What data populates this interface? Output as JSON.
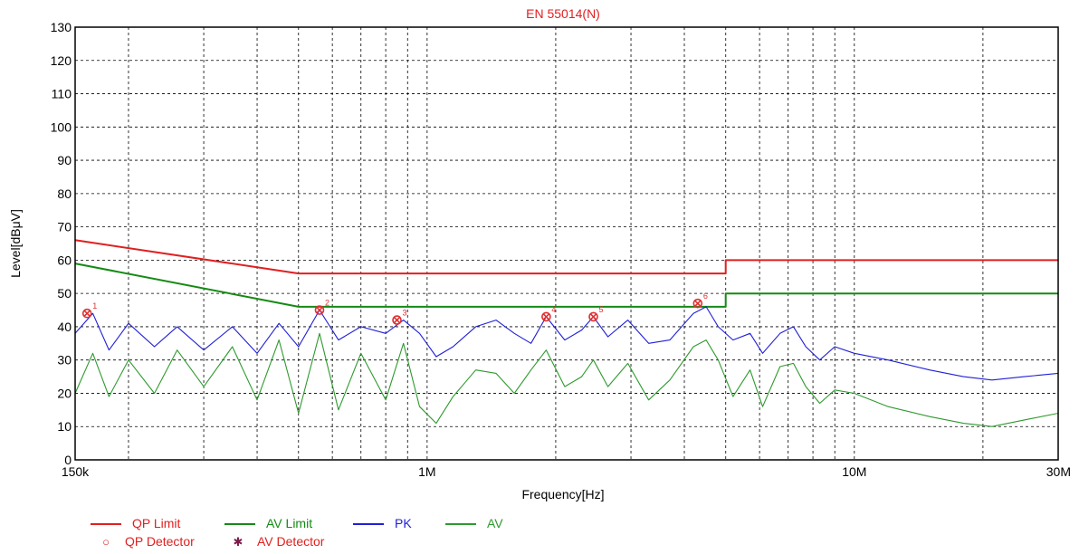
{
  "chart_data": {
    "type": "line",
    "title": "EN 55014(N)",
    "xlabel": "Frequency[Hz]",
    "ylabel": "Level[dBμV]",
    "xscale": "log",
    "xlim": [
      150000,
      30000000
    ],
    "ylim": [
      0,
      130
    ],
    "grid": true,
    "x_tick_labels": [
      {
        "value": 150000,
        "label": "150k"
      },
      {
        "value": 1000000,
        "label": "1M"
      },
      {
        "value": 10000000,
        "label": "10M"
      },
      {
        "value": 30000000,
        "label": "30M"
      }
    ],
    "y_ticks": [
      0,
      10,
      20,
      30,
      40,
      50,
      60,
      70,
      80,
      90,
      100,
      110,
      120,
      130
    ],
    "legend_position": "bottom-left",
    "series": [
      {
        "name": "QP Limit",
        "color": "#e02020",
        "points": [
          [
            150000,
            66
          ],
          [
            500000,
            56
          ],
          [
            5000000,
            56
          ],
          [
            5000000,
            60
          ],
          [
            30000000,
            60
          ]
        ]
      },
      {
        "name": "AV Limit",
        "color": "#148a14",
        "points": [
          [
            150000,
            59
          ],
          [
            500000,
            46
          ],
          [
            5000000,
            46
          ],
          [
            5000000,
            50
          ],
          [
            30000000,
            50
          ]
        ]
      },
      {
        "name": "PK",
        "color": "#1f1fd6",
        "points": [
          [
            150000,
            38
          ],
          [
            165000,
            44
          ],
          [
            180000,
            33
          ],
          [
            200000,
            41
          ],
          [
            230000,
            34
          ],
          [
            260000,
            40
          ],
          [
            300000,
            33
          ],
          [
            350000,
            40
          ],
          [
            400000,
            32
          ],
          [
            450000,
            41
          ],
          [
            500000,
            34
          ],
          [
            560000,
            45
          ],
          [
            620000,
            36
          ],
          [
            700000,
            40
          ],
          [
            800000,
            38
          ],
          [
            880000,
            42
          ],
          [
            960000,
            38
          ],
          [
            1050000,
            31
          ],
          [
            1150000,
            34
          ],
          [
            1300000,
            40
          ],
          [
            1450000,
            42
          ],
          [
            1600000,
            38
          ],
          [
            1750000,
            35
          ],
          [
            1900000,
            43
          ],
          [
            2100000,
            36
          ],
          [
            2300000,
            39
          ],
          [
            2450000,
            43
          ],
          [
            2650000,
            37
          ],
          [
            2950000,
            42
          ],
          [
            3300000,
            35
          ],
          [
            3700000,
            36
          ],
          [
            4200000,
            44
          ],
          [
            4500000,
            46
          ],
          [
            4800000,
            40
          ],
          [
            5200000,
            36
          ],
          [
            5700000,
            38
          ],
          [
            6100000,
            32
          ],
          [
            6700000,
            38
          ],
          [
            7200000,
            40
          ],
          [
            7700000,
            34
          ],
          [
            8300000,
            30
          ],
          [
            9000000,
            34
          ],
          [
            10000000,
            32
          ],
          [
            12000000,
            30
          ],
          [
            15000000,
            27
          ],
          [
            18000000,
            25
          ],
          [
            21000000,
            24
          ],
          [
            25000000,
            25
          ],
          [
            30000000,
            26
          ]
        ]
      },
      {
        "name": "AV",
        "color": "#2e9a2e",
        "points": [
          [
            150000,
            20
          ],
          [
            165000,
            32
          ],
          [
            180000,
            19
          ],
          [
            200000,
            30
          ],
          [
            230000,
            20
          ],
          [
            260000,
            33
          ],
          [
            300000,
            22
          ],
          [
            350000,
            34
          ],
          [
            400000,
            18
          ],
          [
            450000,
            36
          ],
          [
            500000,
            14
          ],
          [
            560000,
            38
          ],
          [
            620000,
            15
          ],
          [
            700000,
            32
          ],
          [
            800000,
            18
          ],
          [
            880000,
            35
          ],
          [
            960000,
            16
          ],
          [
            1050000,
            11
          ],
          [
            1150000,
            19
          ],
          [
            1300000,
            27
          ],
          [
            1450000,
            26
          ],
          [
            1600000,
            20
          ],
          [
            1750000,
            27
          ],
          [
            1900000,
            33
          ],
          [
            2100000,
            22
          ],
          [
            2300000,
            25
          ],
          [
            2450000,
            30
          ],
          [
            2650000,
            22
          ],
          [
            2950000,
            29
          ],
          [
            3300000,
            18
          ],
          [
            3700000,
            24
          ],
          [
            4200000,
            34
          ],
          [
            4500000,
            36
          ],
          [
            4800000,
            30
          ],
          [
            5200000,
            19
          ],
          [
            5700000,
            27
          ],
          [
            6100000,
            16
          ],
          [
            6700000,
            28
          ],
          [
            7200000,
            29
          ],
          [
            7700000,
            22
          ],
          [
            8300000,
            17
          ],
          [
            9000000,
            21
          ],
          [
            10000000,
            20
          ],
          [
            12000000,
            16
          ],
          [
            15000000,
            13
          ],
          [
            18000000,
            11
          ],
          [
            21000000,
            10
          ],
          [
            25000000,
            12
          ],
          [
            30000000,
            14
          ]
        ]
      }
    ],
    "markers": [
      {
        "label": "1",
        "x": 160000,
        "y": 44
      },
      {
        "label": "2",
        "x": 560000,
        "y": 45
      },
      {
        "label": "3",
        "x": 850000,
        "y": 42
      },
      {
        "label": "4",
        "x": 1900000,
        "y": 43
      },
      {
        "label": "5",
        "x": 2450000,
        "y": 43
      },
      {
        "label": "6",
        "x": 4300000,
        "y": 47
      }
    ]
  },
  "legend": {
    "qp_limit": "QP Limit",
    "av_limit": "AV Limit",
    "pk": "PK",
    "av": "AV",
    "qp_detector": "QP Detector",
    "av_detector": "AV Detector"
  }
}
